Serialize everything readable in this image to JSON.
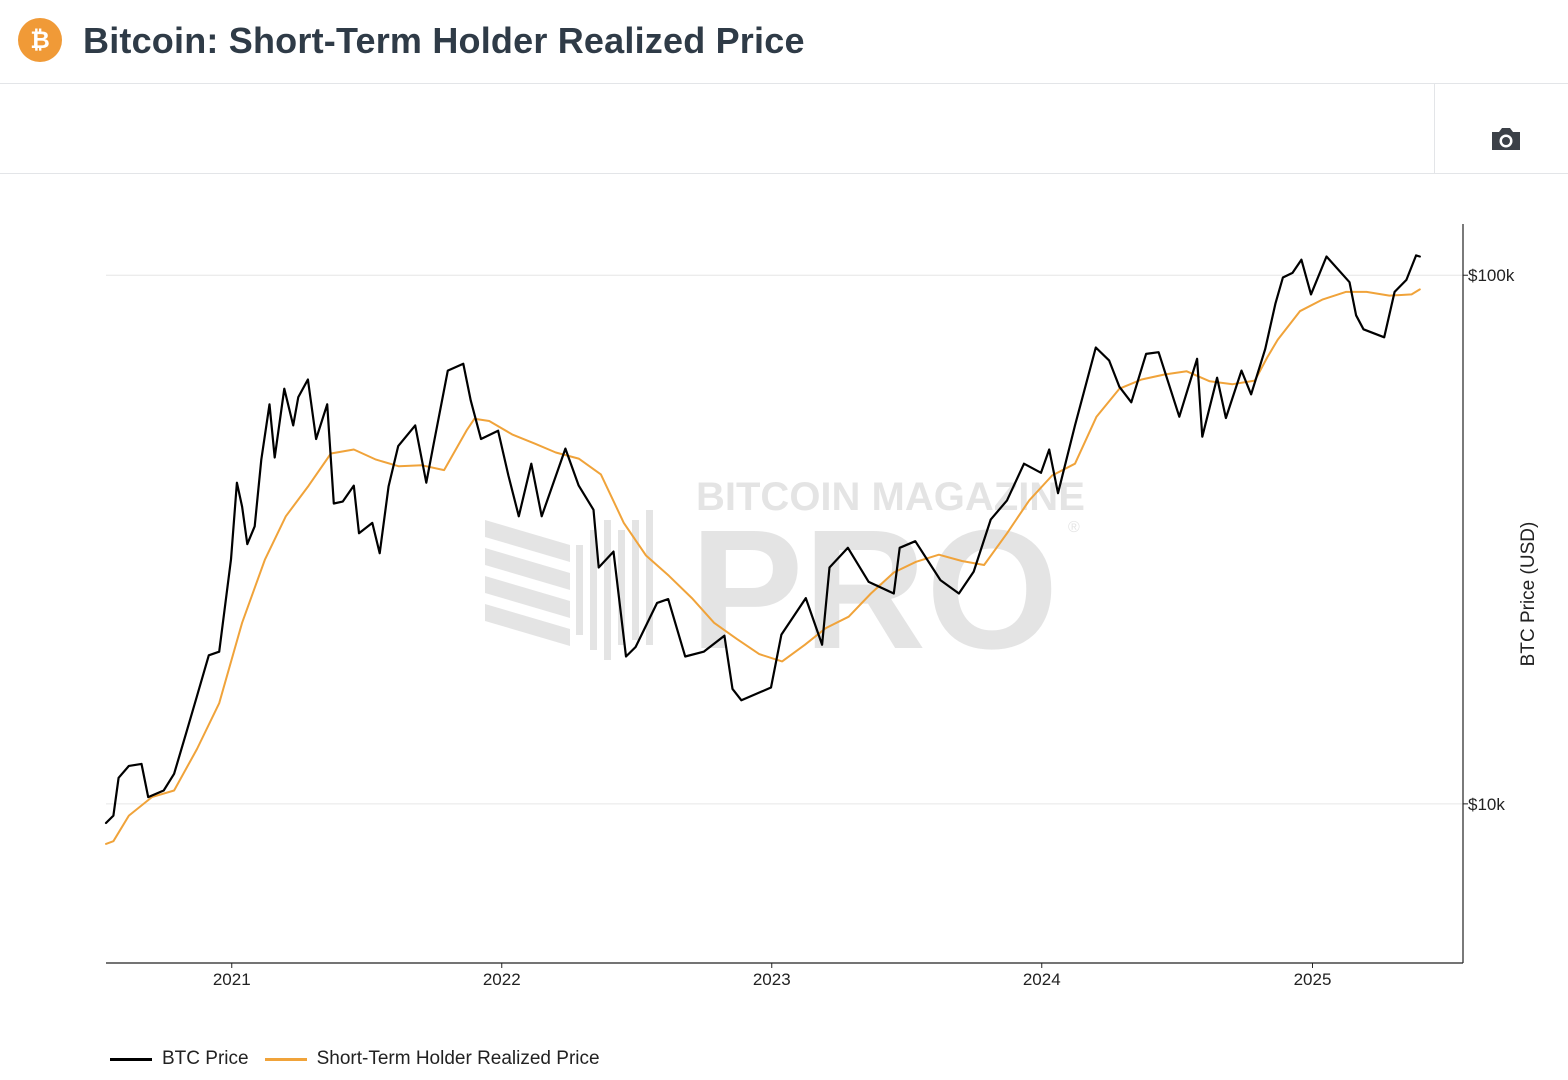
{
  "header": {
    "title": "Bitcoin: Short-Term Holder Realized Price",
    "logo_glyph": "₿",
    "logo_color": "#f09a37"
  },
  "toolbar": {
    "camera_icon": "camera-icon"
  },
  "watermark": {
    "line1": "BITCOIN MAGAZINE",
    "line2": "PRO",
    "mark": "®"
  },
  "chart_data": {
    "type": "line",
    "title": "",
    "xlabel": "",
    "ylabel": "BTC Price (USD)",
    "y_scale": "log",
    "ylim": [
      5000,
      125000
    ],
    "xlim": [
      "2020-07-15",
      "2025-05-31"
    ],
    "x_ticks": [
      "2021",
      "2022",
      "2023",
      "2024",
      "2025"
    ],
    "y_ticks": [
      {
        "value": 10000,
        "label": "$10k"
      },
      {
        "value": 100000,
        "label": "$100k"
      }
    ],
    "grid": "horizontal",
    "legend": "bottom-left",
    "series": [
      {
        "name": "BTC Price",
        "color": "#000000",
        "points": [
          [
            "2020-07-15",
            9200
          ],
          [
            "2020-07-25",
            9500
          ],
          [
            "2020-08-01",
            11200
          ],
          [
            "2020-08-15",
            11800
          ],
          [
            "2020-09-01",
            11900
          ],
          [
            "2020-09-10",
            10300
          ],
          [
            "2020-10-01",
            10600
          ],
          [
            "2020-10-15",
            11400
          ],
          [
            "2020-11-01",
            13700
          ],
          [
            "2020-11-15",
            16000
          ],
          [
            "2020-12-01",
            19100
          ],
          [
            "2020-12-15",
            19400
          ],
          [
            "2020-12-31",
            29000
          ],
          [
            "2021-01-08",
            40500
          ],
          [
            "2021-01-15",
            36500
          ],
          [
            "2021-01-22",
            31000
          ],
          [
            "2021-02-01",
            33500
          ],
          [
            "2021-02-10",
            44800
          ],
          [
            "2021-02-21",
            57000
          ],
          [
            "2021-02-28",
            45200
          ],
          [
            "2021-03-13",
            61000
          ],
          [
            "2021-03-25",
            52000
          ],
          [
            "2021-04-01",
            58800
          ],
          [
            "2021-04-14",
            63500
          ],
          [
            "2021-04-25",
            49000
          ],
          [
            "2021-05-10",
            57000
          ],
          [
            "2021-05-19",
            37000
          ],
          [
            "2021-05-31",
            37300
          ],
          [
            "2021-06-15",
            40000
          ],
          [
            "2021-06-22",
            32500
          ],
          [
            "2021-07-10",
            34000
          ],
          [
            "2021-07-20",
            29800
          ],
          [
            "2021-08-01",
            39900
          ],
          [
            "2021-08-14",
            47500
          ],
          [
            "2021-09-06",
            52000
          ],
          [
            "2021-09-21",
            40500
          ],
          [
            "2021-10-01",
            48000
          ],
          [
            "2021-10-20",
            66000
          ],
          [
            "2021-11-10",
            68000
          ],
          [
            "2021-11-20",
            58000
          ],
          [
            "2021-12-04",
            49000
          ],
          [
            "2021-12-27",
            50800
          ],
          [
            "2022-01-10",
            41800
          ],
          [
            "2022-01-24",
            35000
          ],
          [
            "2022-02-10",
            44000
          ],
          [
            "2022-02-24",
            35000
          ],
          [
            "2022-03-28",
            47000
          ],
          [
            "2022-04-15",
            40000
          ],
          [
            "2022-05-05",
            36000
          ],
          [
            "2022-05-12",
            28000
          ],
          [
            "2022-06-01",
            30000
          ],
          [
            "2022-06-18",
            19000
          ],
          [
            "2022-07-01",
            19800
          ],
          [
            "2022-07-30",
            24000
          ],
          [
            "2022-08-14",
            24400
          ],
          [
            "2022-09-06",
            19000
          ],
          [
            "2022-10-01",
            19400
          ],
          [
            "2022-10-29",
            20800
          ],
          [
            "2022-11-09",
            16500
          ],
          [
            "2022-11-21",
            15700
          ],
          [
            "2022-12-31",
            16600
          ],
          [
            "2023-01-14",
            20900
          ],
          [
            "2023-02-16",
            24500
          ],
          [
            "2023-03-10",
            20000
          ],
          [
            "2023-03-20",
            28000
          ],
          [
            "2023-04-14",
            30500
          ],
          [
            "2023-05-12",
            26300
          ],
          [
            "2023-06-15",
            25000
          ],
          [
            "2023-06-23",
            30500
          ],
          [
            "2023-07-14",
            31400
          ],
          [
            "2023-08-17",
            26500
          ],
          [
            "2023-09-11",
            25000
          ],
          [
            "2023-10-01",
            27500
          ],
          [
            "2023-10-24",
            34500
          ],
          [
            "2023-11-15",
            37500
          ],
          [
            "2023-12-08",
            44000
          ],
          [
            "2023-12-31",
            42300
          ],
          [
            "2024-01-11",
            46800
          ],
          [
            "2024-01-23",
            38700
          ],
          [
            "2024-02-15",
            52000
          ],
          [
            "2024-03-14",
            73000
          ],
          [
            "2024-04-01",
            69000
          ],
          [
            "2024-04-15",
            61500
          ],
          [
            "2024-05-01",
            57500
          ],
          [
            "2024-05-21",
            71000
          ],
          [
            "2024-06-07",
            71500
          ],
          [
            "2024-07-05",
            54000
          ],
          [
            "2024-07-29",
            69500
          ],
          [
            "2024-08-05",
            49500
          ],
          [
            "2024-08-25",
            64000
          ],
          [
            "2024-09-06",
            53700
          ],
          [
            "2024-09-27",
            66000
          ],
          [
            "2024-10-10",
            59500
          ],
          [
            "2024-10-29",
            72500
          ],
          [
            "2024-11-12",
            88500
          ],
          [
            "2024-11-22",
            99000
          ],
          [
            "2024-12-05",
            101000
          ],
          [
            "2024-12-17",
            107000
          ],
          [
            "2024-12-30",
            92000
          ],
          [
            "2025-01-20",
            108500
          ],
          [
            "2025-02-20",
            97000
          ],
          [
            "2025-03-01",
            84000
          ],
          [
            "2025-03-11",
            79000
          ],
          [
            "2025-04-08",
            76300
          ],
          [
            "2025-04-22",
            93000
          ],
          [
            "2025-05-08",
            98000
          ],
          [
            "2025-05-21",
            109000
          ],
          [
            "2025-05-26",
            108500
          ]
        ]
      },
      {
        "name": "Short-Term Holder Realized Price",
        "color": "#f0a33a",
        "points": [
          [
            "2020-07-15",
            8400
          ],
          [
            "2020-07-25",
            8500
          ],
          [
            "2020-08-15",
            9500
          ],
          [
            "2020-09-15",
            10300
          ],
          [
            "2020-10-15",
            10600
          ],
          [
            "2020-11-15",
            12700
          ],
          [
            "2020-12-15",
            15500
          ],
          [
            "2021-01-15",
            22000
          ],
          [
            "2021-02-15",
            29000
          ],
          [
            "2021-03-15",
            35000
          ],
          [
            "2021-04-15",
            40000
          ],
          [
            "2021-05-15",
            46000
          ],
          [
            "2021-06-15",
            46800
          ],
          [
            "2021-07-15",
            44800
          ],
          [
            "2021-08-15",
            43500
          ],
          [
            "2021-09-15",
            43700
          ],
          [
            "2021-10-15",
            42800
          ],
          [
            "2021-11-15",
            51000
          ],
          [
            "2021-11-25",
            53500
          ],
          [
            "2021-12-15",
            53000
          ],
          [
            "2022-01-15",
            50000
          ],
          [
            "2022-02-15",
            48000
          ],
          [
            "2022-03-15",
            46200
          ],
          [
            "2022-04-15",
            45000
          ],
          [
            "2022-05-15",
            42000
          ],
          [
            "2022-06-15",
            34000
          ],
          [
            "2022-07-15",
            29500
          ],
          [
            "2022-08-15",
            27000
          ],
          [
            "2022-09-15",
            24500
          ],
          [
            "2022-10-15",
            22000
          ],
          [
            "2022-11-15",
            20500
          ],
          [
            "2022-12-15",
            19200
          ],
          [
            "2023-01-15",
            18600
          ],
          [
            "2023-02-15",
            20000
          ],
          [
            "2023-03-15",
            21500
          ],
          [
            "2023-04-15",
            22600
          ],
          [
            "2023-05-15",
            25000
          ],
          [
            "2023-06-15",
            27400
          ],
          [
            "2023-07-15",
            28700
          ],
          [
            "2023-08-15",
            29600
          ],
          [
            "2023-09-15",
            28800
          ],
          [
            "2023-10-15",
            28300
          ],
          [
            "2023-11-15",
            32500
          ],
          [
            "2023-12-15",
            37500
          ],
          [
            "2024-01-15",
            41800
          ],
          [
            "2024-02-15",
            44000
          ],
          [
            "2024-03-15",
            54000
          ],
          [
            "2024-04-15",
            61000
          ],
          [
            "2024-05-15",
            63500
          ],
          [
            "2024-06-15",
            64900
          ],
          [
            "2024-07-15",
            65800
          ],
          [
            "2024-08-15",
            63000
          ],
          [
            "2024-09-15",
            62200
          ],
          [
            "2024-10-15",
            63200
          ],
          [
            "2024-11-01",
            70000
          ],
          [
            "2024-11-15",
            75500
          ],
          [
            "2024-12-15",
            85500
          ],
          [
            "2025-01-15",
            90000
          ],
          [
            "2025-02-15",
            93000
          ],
          [
            "2025-03-15",
            93000
          ],
          [
            "2025-04-15",
            91500
          ],
          [
            "2025-05-15",
            92000
          ],
          [
            "2025-05-26",
            94000
          ]
        ]
      }
    ]
  }
}
